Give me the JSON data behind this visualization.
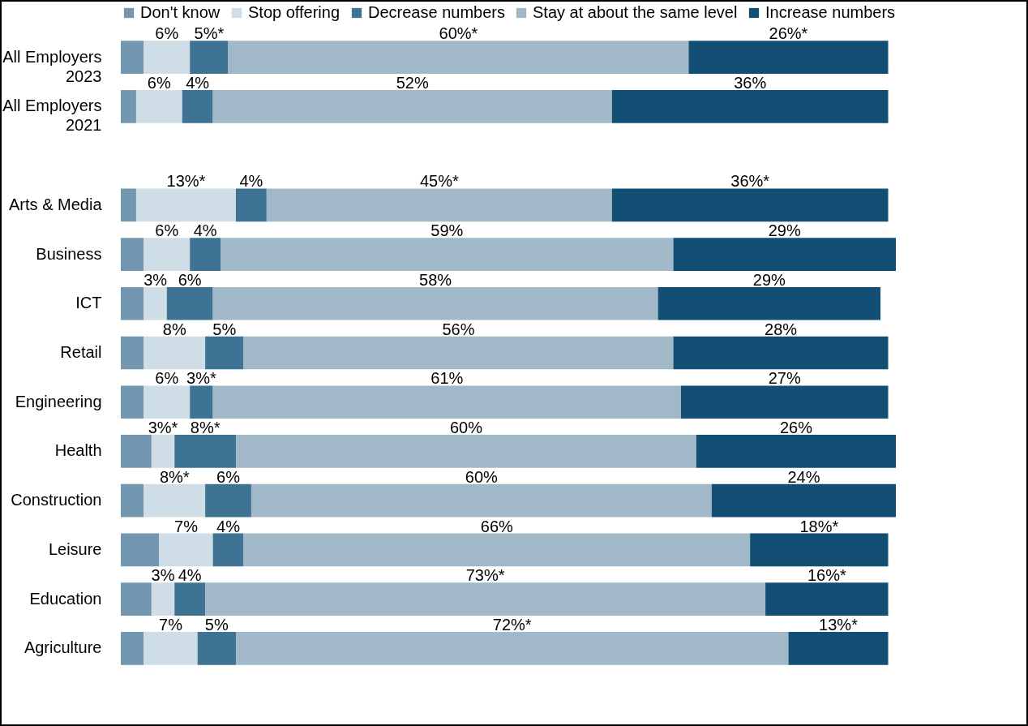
{
  "chart_data": {
    "type": "bar",
    "orientation": "horizontal",
    "stacked": true,
    "legend": "top",
    "categories": [
      "All Employers\n2023",
      "All Employers\n2021",
      null,
      "Arts & Media",
      "Business",
      "ICT",
      "Retail",
      "Engineering",
      "Health",
      "Construction",
      "Leisure",
      "Education",
      "Agriculture"
    ],
    "series": [
      {
        "name": "Don't know",
        "color": "#7397b0",
        "values": [
          3,
          2,
          null,
          2,
          3,
          3,
          3,
          3,
          4,
          3,
          5,
          4,
          3
        ]
      },
      {
        "name": "Stop offering",
        "color": "#cfdde6",
        "values": [
          6,
          6,
          null,
          13,
          6,
          3,
          8,
          6,
          3,
          8,
          7,
          3,
          7
        ],
        "value_labels": [
          "6%",
          "6%",
          null,
          "13%*",
          "6%",
          "3%",
          "8%",
          "6%",
          "3%*",
          "8%*",
          "7%",
          "3%",
          "7%"
        ]
      },
      {
        "name": "Decrease numbers",
        "color": "#3e7394",
        "values": [
          5,
          4,
          null,
          4,
          4,
          6,
          5,
          3,
          8,
          6,
          4,
          4,
          5
        ],
        "value_labels": [
          "5%*",
          "4%",
          null,
          "4%",
          "4%",
          "6%",
          "5%",
          "3%*",
          "8%*",
          "6%",
          "4%",
          "4%",
          "5%"
        ]
      },
      {
        "name": "Stay at about the same level",
        "color": "#a1b8c8",
        "values": [
          60,
          52,
          null,
          45,
          59,
          58,
          56,
          61,
          60,
          60,
          66,
          73,
          72
        ],
        "value_labels": [
          "60%*",
          "52%",
          null,
          "45%*",
          "59%",
          "58%",
          "56%",
          "61%",
          "60%",
          "60%",
          "66%",
          "73%*",
          "72%*"
        ]
      },
      {
        "name": "Increase numbers",
        "color": "#134f74",
        "values": [
          26,
          36,
          null,
          36,
          29,
          29,
          28,
          27,
          26,
          24,
          18,
          16,
          13
        ],
        "value_labels": [
          "26%*",
          "36%",
          null,
          "36%*",
          "29%",
          "29%",
          "28%",
          "27%",
          "26%",
          "24%",
          "18%*",
          "16%*",
          "13%*"
        ]
      }
    ]
  }
}
